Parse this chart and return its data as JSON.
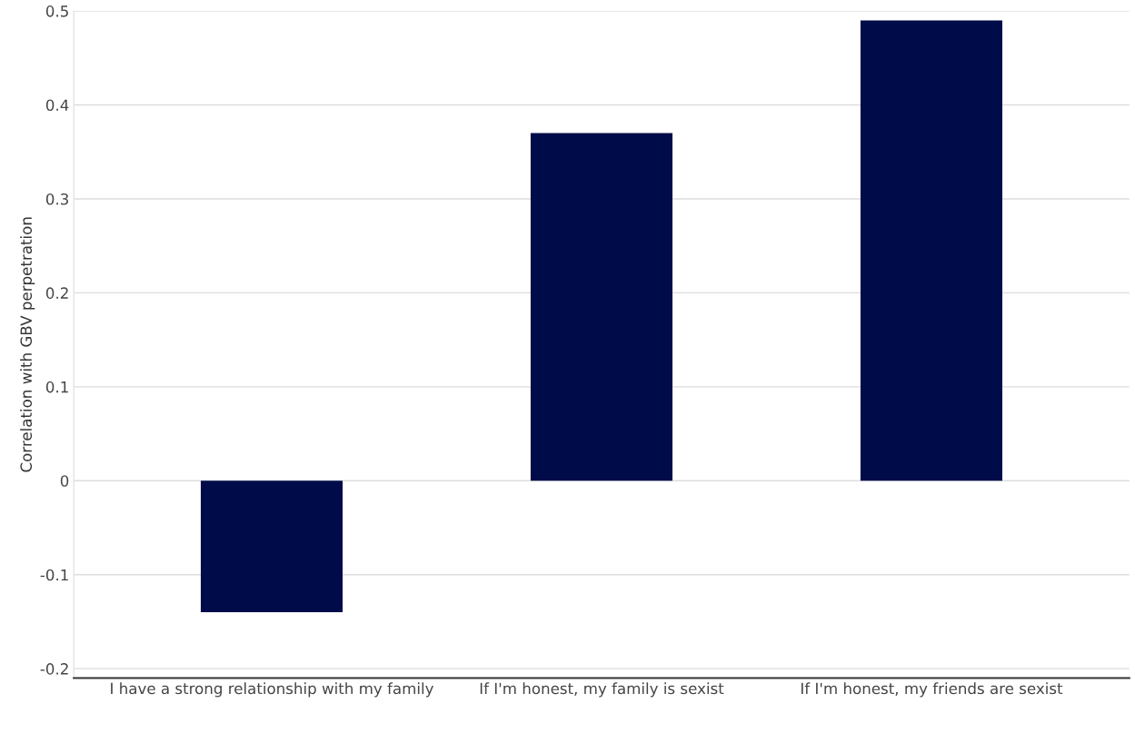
{
  "chart_data": {
    "type": "bar",
    "ylabel": "Correlation with GBV perpetration",
    "categories": [
      "I have a strong relationship with my family",
      "If I'm honest, my family is sexist",
      "If I'm honest, my friends are sexist"
    ],
    "values": [
      -0.14,
      0.37,
      0.49
    ],
    "color": "#000c4a",
    "ylim": [
      -0.21,
      0.5
    ],
    "yticks": [
      -0.2,
      -0.1,
      0,
      0.1,
      0.2,
      0.3,
      0.4,
      0.5
    ],
    "grid": "y"
  }
}
